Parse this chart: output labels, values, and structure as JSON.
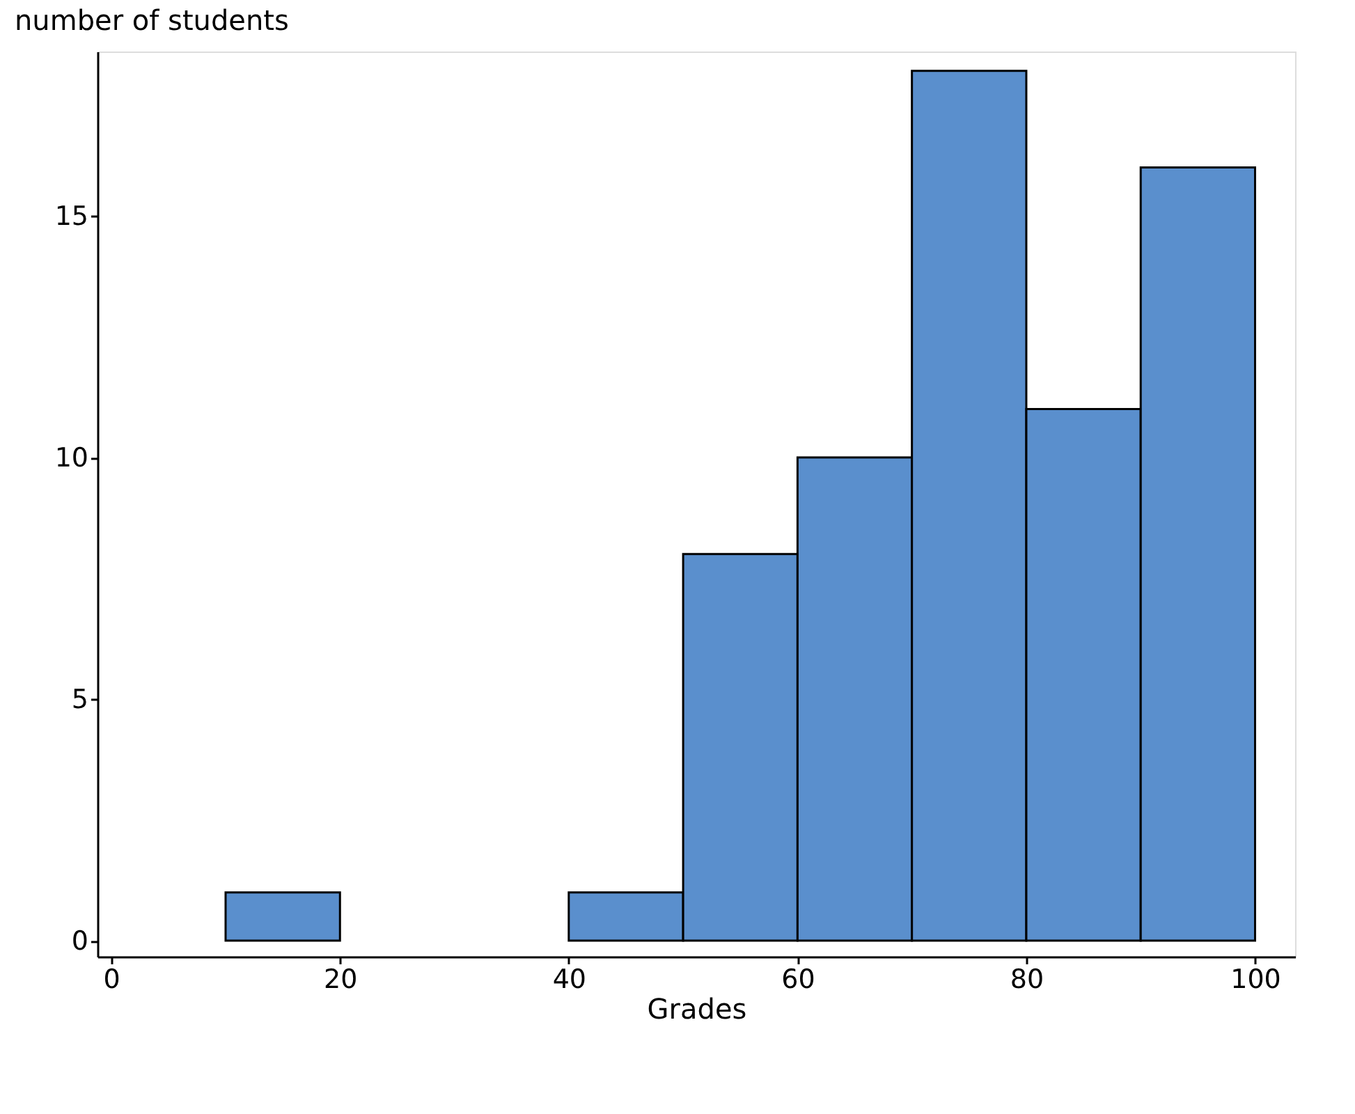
{
  "chart_data": {
    "type": "histogram",
    "xlabel": "Grades",
    "ylabel": "number of students",
    "bins": [
      10,
      20,
      30,
      40,
      50,
      60,
      70,
      80,
      90,
      100
    ],
    "values": [
      1,
      0,
      0,
      1,
      8,
      10,
      18,
      11,
      16
    ],
    "color": "#5a8fcd",
    "xlim": [
      -1.2,
      103.5
    ],
    "xticks": [
      0,
      20,
      40,
      60,
      80,
      100
    ],
    "ylim": [
      -0.33,
      18.4
    ],
    "yticks": [
      0,
      5,
      10,
      15
    ],
    "grid": false
  }
}
